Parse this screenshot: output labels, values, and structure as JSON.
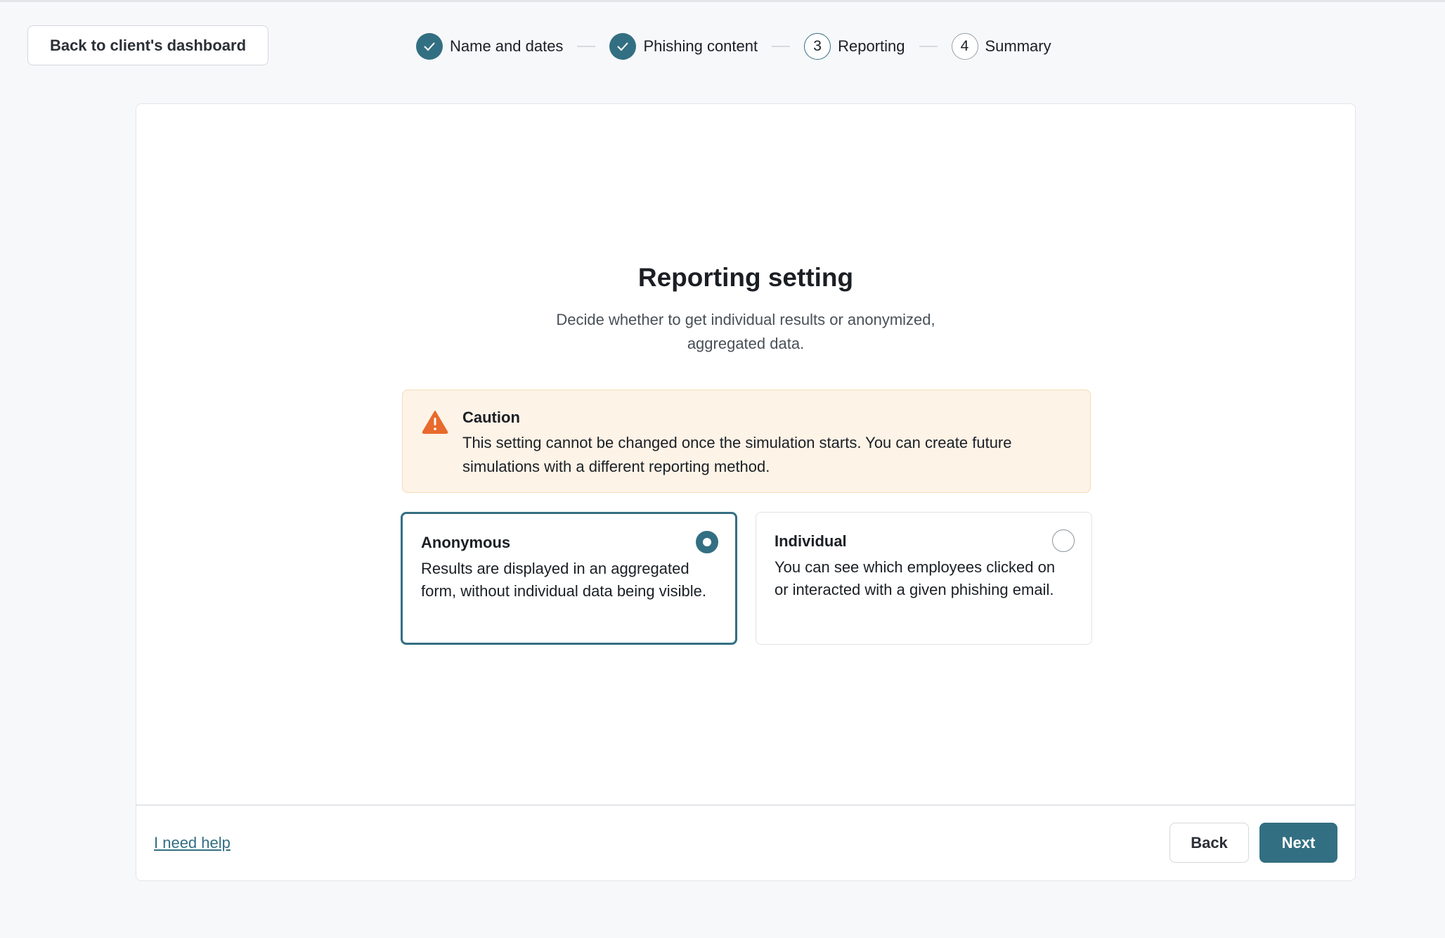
{
  "header": {
    "back_label": "Back to client's dashboard",
    "steps": [
      {
        "label": "Name and dates",
        "state": "done",
        "icon": "check-icon"
      },
      {
        "label": "Phishing content",
        "state": "done",
        "icon": "check-icon"
      },
      {
        "number": "3",
        "label": "Reporting",
        "state": "current"
      },
      {
        "number": "4",
        "label": "Summary",
        "state": "todo"
      }
    ]
  },
  "main": {
    "title": "Reporting setting",
    "subtitle_line1": "Decide whether to get individual results or anonymized,",
    "subtitle_line2": "aggregated data.",
    "caution": {
      "icon": "warning-icon",
      "title": "Caution",
      "body": "This setting cannot be changed once the simulation starts. You can create future simulations with a different reporting method."
    },
    "options": [
      {
        "title": "Anonymous",
        "description": "Results are displayed in an aggregated form, without individual data being visible.",
        "selected": true
      },
      {
        "title": "Individual",
        "description": "You can see which employees clicked on or interacted with a given phishing email.",
        "selected": false
      }
    ]
  },
  "footer": {
    "help_label": "I need help",
    "back_label": "Back",
    "next_label": "Next"
  },
  "colors": {
    "accent": "#336f82",
    "caution_bg": "#fdf3e7",
    "warning": "#e86a2c"
  }
}
